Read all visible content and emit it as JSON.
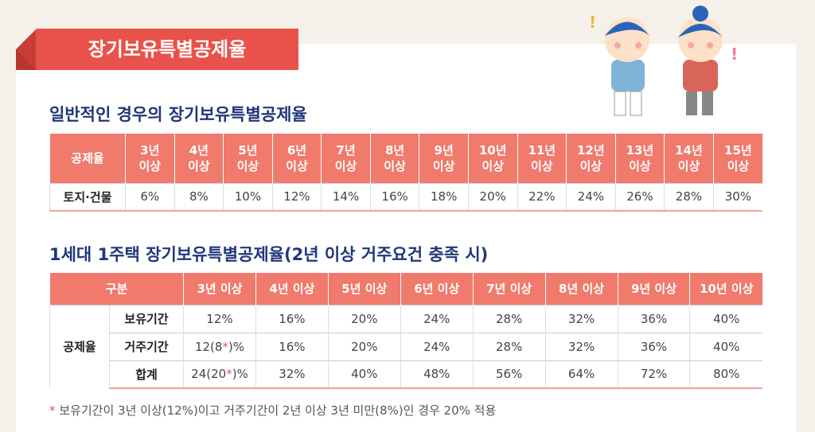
{
  "header": {
    "title": "장기보유특별공제율"
  },
  "section1": {
    "heading": "일반적인 경우의 장기보유특별공제율",
    "table": {
      "header": [
        "공제율",
        "3년\n이상",
        "4년\n이상",
        "5년\n이상",
        "6년\n이상",
        "7년\n이상",
        "8년\n이상",
        "9년\n이상",
        "10년\n이상",
        "11년\n이상",
        "12년\n이상",
        "13년\n이상",
        "14년\n이상",
        "15년\n이상"
      ],
      "rows": [
        [
          "토지·건물",
          "6%",
          "8%",
          "10%",
          "12%",
          "14%",
          "16%",
          "18%",
          "20%",
          "22%",
          "24%",
          "26%",
          "28%",
          "30%"
        ]
      ]
    }
  },
  "section2": {
    "heading": "1세대 1주택 장기보유특별공제율(2년 이상 거주요건 충족 시)",
    "table": {
      "header": [
        "구분",
        "3년 이상",
        "4년 이상",
        "5년 이상",
        "6년 이상",
        "7년 이상",
        "8년 이상",
        "9년 이상",
        "10년 이상"
      ],
      "group": "공제율",
      "rows": [
        {
          "label": "보유기간",
          "cells": [
            [
              "12%"
            ],
            [
              "16%"
            ],
            [
              "20%"
            ],
            [
              "24%"
            ],
            [
              "28%"
            ],
            [
              "32%"
            ],
            [
              "36%"
            ],
            [
              "40%"
            ]
          ]
        },
        {
          "label": "거주기간",
          "cells": [
            [
              "12(8",
              "*",
              ")%"
            ],
            [
              "16%"
            ],
            [
              "20%"
            ],
            [
              "24%"
            ],
            [
              "28%"
            ],
            [
              "32%"
            ],
            [
              "36%"
            ],
            [
              "40%"
            ]
          ]
        },
        {
          "label": "합계",
          "cells": [
            [
              "24(20",
              "*",
              ")%"
            ],
            [
              "32%"
            ],
            [
              "40%"
            ],
            [
              "48%"
            ],
            [
              "56%"
            ],
            [
              "64%"
            ],
            [
              "72%"
            ],
            [
              "80%"
            ]
          ]
        }
      ]
    }
  },
  "footnote": {
    "mark": "*",
    "text": " 보유기간이 3년 이상(12%)이고 거주기간이 2년 이상 3년 미만(8%)인 경우 20% 적용"
  }
}
